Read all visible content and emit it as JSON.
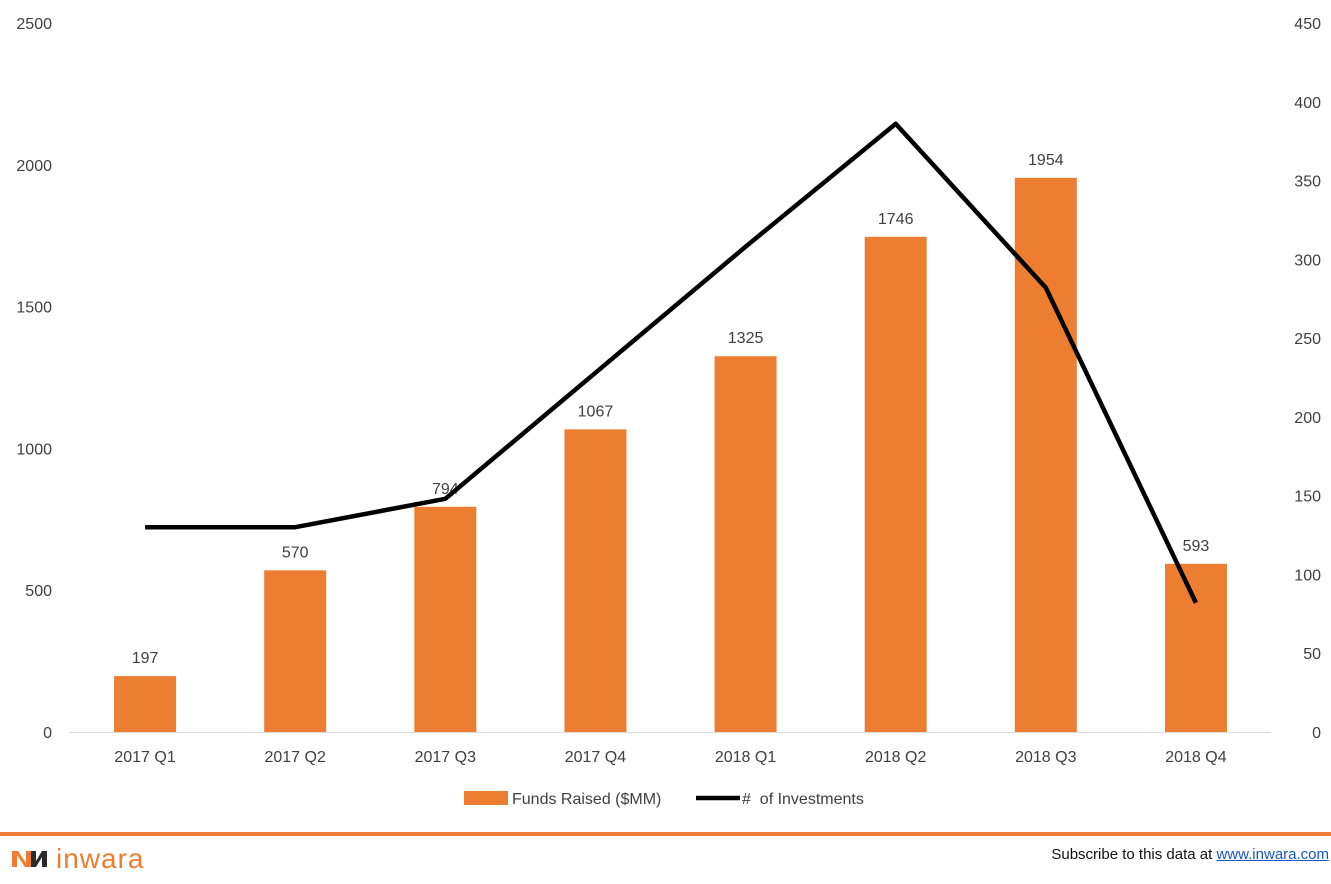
{
  "colors": {
    "bar": "#ed7d31",
    "line": "#000000",
    "axis_text": "#404040",
    "axis_line": "#d9d9d9",
    "footer_rule": "#ed7d31",
    "logo_dark": "#2b2b2b",
    "logo_accent": "#ed7d31",
    "link": "#1a56c8"
  },
  "chart_data": {
    "type": "bar",
    "categories": [
      "2017 Q1",
      "2017 Q2",
      "2017 Q3",
      "2017 Q4",
      "2018 Q1",
      "2018 Q2",
      "2018 Q3",
      "2018 Q4"
    ],
    "series": [
      {
        "name": "Funds Raised ($MM)",
        "type": "bar",
        "axis": "left",
        "values": [
          197,
          570,
          794,
          1067,
          1325,
          1746,
          1954,
          593
        ],
        "data_labels": [
          "197",
          "570",
          "794",
          "1067",
          "1325",
          "1746",
          "1954",
          "593"
        ]
      },
      {
        "name": "#  of Investments",
        "type": "line",
        "axis": "right",
        "values": [
          130,
          130,
          148,
          228,
          308,
          386,
          282,
          82
        ]
      }
    ],
    "y_left": {
      "ylim": [
        0,
        2500
      ],
      "ticks": [
        "0",
        "500",
        "1000",
        "1500",
        "2000",
        "2500"
      ]
    },
    "y_right": {
      "ylim": [
        0,
        450
      ],
      "ticks": [
        "0",
        "50",
        "100",
        "150",
        "200",
        "250",
        "300",
        "350",
        "400",
        "450"
      ]
    },
    "grid": false,
    "legend": "bottom"
  },
  "footer": {
    "brand": "inwara",
    "subscribe_text": "Subscribe to this data at ",
    "subscribe_link": "www.inwara.com"
  }
}
